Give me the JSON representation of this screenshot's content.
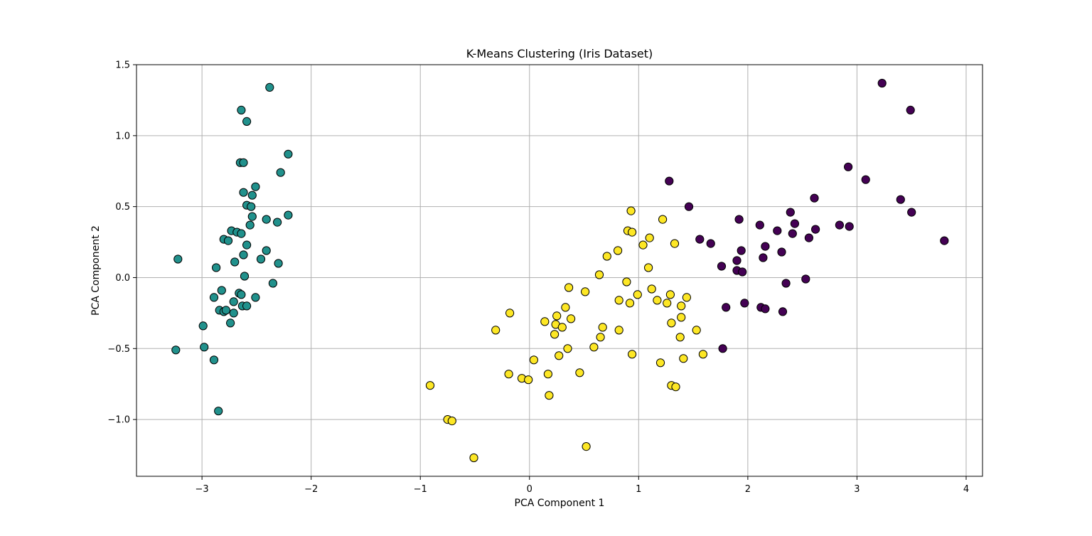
{
  "chart_data": {
    "type": "scatter",
    "title": "K-Means Clustering (Iris Dataset)",
    "xlabel": "PCA Component 1",
    "ylabel": "PCA Component 2",
    "xlim": [
      -3.6,
      4.15
    ],
    "ylim": [
      -1.4,
      1.5
    ],
    "xticks": [
      -3,
      -2,
      -1,
      0,
      1,
      2,
      3,
      4
    ],
    "xtick_labels": [
      "−3",
      "−2",
      "−1",
      "0",
      "1",
      "2",
      "3",
      "4"
    ],
    "yticks": [
      -1.0,
      -0.5,
      0.0,
      0.5,
      1.0,
      1.5
    ],
    "ytick_labels": [
      "−1.0",
      "−0.5",
      "0.0",
      "0.5",
      "1.0",
      "1.5"
    ],
    "grid": true,
    "legend": false,
    "series": [
      {
        "cluster": 1,
        "color": "#21918c",
        "points": [
          [
            -3.22,
            0.13
          ],
          [
            -3.24,
            -0.51
          ],
          [
            -2.99,
            -0.34
          ],
          [
            -2.98,
            -0.49
          ],
          [
            -2.89,
            -0.58
          ],
          [
            -2.85,
            -0.94
          ],
          [
            -2.89,
            -0.14
          ],
          [
            -2.84,
            -0.23
          ],
          [
            -2.87,
            0.07
          ],
          [
            -2.82,
            -0.09
          ],
          [
            -2.8,
            -0.24
          ],
          [
            -2.78,
            -0.23
          ],
          [
            -2.8,
            0.27
          ],
          [
            -2.76,
            0.26
          ],
          [
            -2.74,
            -0.32
          ],
          [
            -2.73,
            0.33
          ],
          [
            -2.71,
            -0.17
          ],
          [
            -2.71,
            -0.25
          ],
          [
            -2.7,
            0.11
          ],
          [
            -2.68,
            0.32
          ],
          [
            -2.66,
            -0.11
          ],
          [
            -2.64,
            -0.12
          ],
          [
            -2.64,
            0.31
          ],
          [
            -2.63,
            -0.2
          ],
          [
            -2.62,
            0.16
          ],
          [
            -2.61,
            0.01
          ],
          [
            -2.59,
            -0.2
          ],
          [
            -2.59,
            0.23
          ],
          [
            -2.56,
            0.37
          ],
          [
            -2.59,
            0.51
          ],
          [
            -2.55,
            0.5
          ],
          [
            -2.54,
            0.43
          ],
          [
            -2.54,
            0.58
          ],
          [
            -2.62,
            0.6
          ],
          [
            -2.51,
            0.64
          ],
          [
            -2.51,
            -0.14
          ],
          [
            -2.46,
            0.13
          ],
          [
            -2.41,
            0.19
          ],
          [
            -2.41,
            0.41
          ],
          [
            -2.35,
            -0.04
          ],
          [
            -2.31,
            0.39
          ],
          [
            -2.3,
            0.1
          ],
          [
            -2.28,
            0.74
          ],
          [
            -2.21,
            0.87
          ],
          [
            -2.21,
            0.44
          ],
          [
            -2.64,
            1.18
          ],
          [
            -2.59,
            1.1
          ],
          [
            -2.38,
            1.34
          ],
          [
            -2.65,
            0.81
          ],
          [
            -2.62,
            0.81
          ]
        ]
      },
      {
        "cluster": 2,
        "color": "#fde725",
        "points": [
          [
            -0.91,
            -0.76
          ],
          [
            -0.75,
            -1.0
          ],
          [
            -0.71,
            -1.01
          ],
          [
            -0.51,
            -1.27
          ],
          [
            -0.31,
            -0.37
          ],
          [
            -0.19,
            -0.68
          ],
          [
            -0.18,
            -0.25
          ],
          [
            -0.07,
            -0.71
          ],
          [
            -0.01,
            -0.72
          ],
          [
            0.04,
            -0.58
          ],
          [
            0.14,
            -0.31
          ],
          [
            0.17,
            -0.68
          ],
          [
            0.18,
            -0.83
          ],
          [
            0.23,
            -0.4
          ],
          [
            0.24,
            -0.33
          ],
          [
            0.25,
            -0.27
          ],
          [
            0.27,
            -0.55
          ],
          [
            0.3,
            -0.35
          ],
          [
            0.33,
            -0.21
          ],
          [
            0.36,
            -0.07
          ],
          [
            0.35,
            -0.5
          ],
          [
            0.38,
            -0.29
          ],
          [
            0.46,
            -0.67
          ],
          [
            0.51,
            -0.1
          ],
          [
            0.52,
            -1.19
          ],
          [
            0.59,
            -0.49
          ],
          [
            0.64,
            0.02
          ],
          [
            0.65,
            -0.42
          ],
          [
            0.67,
            -0.35
          ],
          [
            0.71,
            0.15
          ],
          [
            0.81,
            0.19
          ],
          [
            0.82,
            -0.16
          ],
          [
            0.82,
            -0.37
          ],
          [
            0.89,
            -0.03
          ],
          [
            0.9,
            0.33
          ],
          [
            0.92,
            -0.18
          ],
          [
            0.93,
            0.47
          ],
          [
            0.94,
            0.32
          ],
          [
            0.94,
            -0.54
          ],
          [
            0.99,
            -0.12
          ],
          [
            1.04,
            0.23
          ],
          [
            1.09,
            0.07
          ],
          [
            1.1,
            0.28
          ],
          [
            1.12,
            -0.08
          ],
          [
            1.17,
            -0.16
          ],
          [
            1.2,
            -0.6
          ],
          [
            1.22,
            0.41
          ],
          [
            1.26,
            -0.18
          ],
          [
            1.29,
            -0.12
          ],
          [
            1.3,
            -0.32
          ],
          [
            1.3,
            -0.76
          ],
          [
            1.33,
            0.24
          ],
          [
            1.34,
            -0.77
          ],
          [
            1.38,
            -0.42
          ],
          [
            1.39,
            -0.2
          ],
          [
            1.39,
            -0.28
          ],
          [
            1.41,
            -0.57
          ],
          [
            1.44,
            -0.14
          ],
          [
            1.53,
            -0.37
          ],
          [
            1.59,
            -0.54
          ]
        ]
      },
      {
        "cluster": 3,
        "color": "#440154",
        "points": [
          [
            1.28,
            0.68
          ],
          [
            1.46,
            0.5
          ],
          [
            1.56,
            0.27
          ],
          [
            1.66,
            0.24
          ],
          [
            1.76,
            0.08
          ],
          [
            1.77,
            -0.5
          ],
          [
            1.8,
            -0.21
          ],
          [
            1.9,
            0.12
          ],
          [
            1.9,
            0.05
          ],
          [
            1.92,
            0.41
          ],
          [
            1.94,
            0.19
          ],
          [
            1.95,
            0.04
          ],
          [
            1.97,
            -0.18
          ],
          [
            2.11,
            0.37
          ],
          [
            2.12,
            -0.21
          ],
          [
            2.14,
            0.14
          ],
          [
            2.16,
            0.22
          ],
          [
            2.16,
            -0.22
          ],
          [
            2.27,
            0.33
          ],
          [
            2.31,
            0.18
          ],
          [
            2.32,
            -0.24
          ],
          [
            2.35,
            -0.04
          ],
          [
            2.39,
            0.46
          ],
          [
            2.41,
            0.31
          ],
          [
            2.43,
            0.38
          ],
          [
            2.53,
            -0.01
          ],
          [
            2.56,
            0.28
          ],
          [
            2.61,
            0.56
          ],
          [
            2.62,
            0.34
          ],
          [
            2.84,
            0.37
          ],
          [
            2.92,
            0.78
          ],
          [
            2.93,
            0.36
          ],
          [
            3.08,
            0.69
          ],
          [
            3.23,
            1.37
          ],
          [
            3.4,
            0.55
          ],
          [
            3.49,
            1.18
          ],
          [
            3.5,
            0.46
          ],
          [
            3.8,
            0.26
          ]
        ]
      }
    ]
  }
}
